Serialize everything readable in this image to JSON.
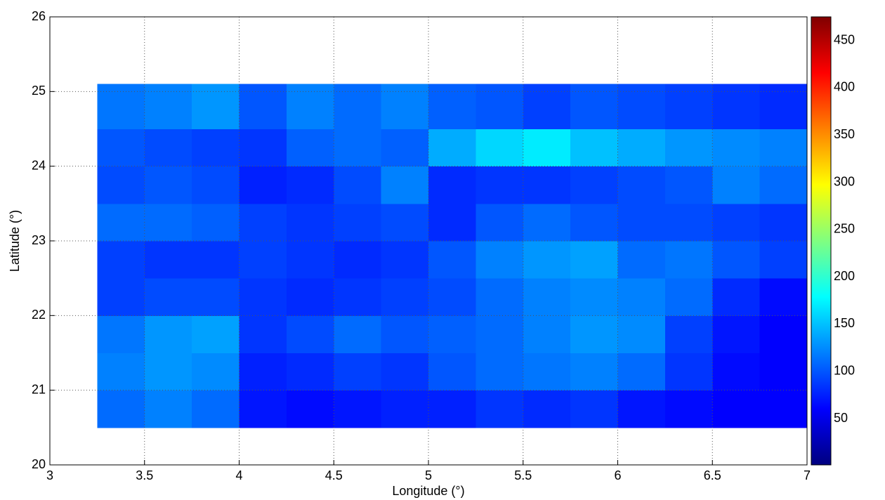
{
  "chart_data": {
    "type": "heatmap",
    "xlabel": "Longitude (°)",
    "ylabel": "Latitude (°)",
    "xlim": [
      3,
      7
    ],
    "ylim": [
      20,
      26
    ],
    "xticks": [
      3,
      3.5,
      4,
      4.5,
      5,
      5.5,
      6,
      6.5,
      7
    ],
    "yticks": [
      20,
      21,
      22,
      23,
      24,
      25,
      26
    ],
    "grid": true,
    "colormap": "jet",
    "clim": [
      1,
      475
    ],
    "colorbar_ticks": [
      50,
      100,
      150,
      200,
      250,
      300,
      350,
      400,
      450
    ],
    "x_edges": [
      3.25,
      3.5,
      3.75,
      4,
      4.25,
      4.5,
      4.75,
      5,
      5.25,
      5.5,
      5.75,
      6,
      6.25,
      6.5,
      6.75,
      7
    ],
    "y_edges": [
      20.5,
      21,
      21.5,
      22,
      22.5,
      23,
      23.5,
      24,
      24.5,
      25.1
    ],
    "z": [
      [
        110,
        120,
        110,
        70,
        65,
        70,
        75,
        75,
        85,
        80,
        85,
        70,
        65,
        60,
        60
      ],
      [
        120,
        130,
        125,
        75,
        80,
        90,
        85,
        100,
        110,
        115,
        120,
        110,
        85,
        65,
        60
      ],
      [
        115,
        130,
        135,
        85,
        95,
        110,
        100,
        105,
        110,
        120,
        130,
        125,
        90,
        70,
        60
      ],
      [
        90,
        95,
        95,
        85,
        80,
        85,
        90,
        95,
        110,
        120,
        125,
        120,
        110,
        80,
        65
      ],
      [
        90,
        85,
        85,
        90,
        85,
        80,
        85,
        100,
        120,
        130,
        135,
        110,
        115,
        100,
        90
      ],
      [
        110,
        110,
        105,
        90,
        85,
        90,
        95,
        80,
        100,
        110,
        100,
        95,
        95,
        90,
        85
      ],
      [
        95,
        100,
        95,
        75,
        80,
        95,
        120,
        80,
        85,
        85,
        90,
        95,
        100,
        120,
        110
      ],
      [
        100,
        95,
        90,
        85,
        105,
        110,
        105,
        140,
        160,
        170,
        150,
        140,
        130,
        125,
        120
      ],
      [
        115,
        120,
        130,
        100,
        120,
        110,
        120,
        105,
        100,
        90,
        100,
        95,
        90,
        85,
        80
      ]
    ]
  }
}
